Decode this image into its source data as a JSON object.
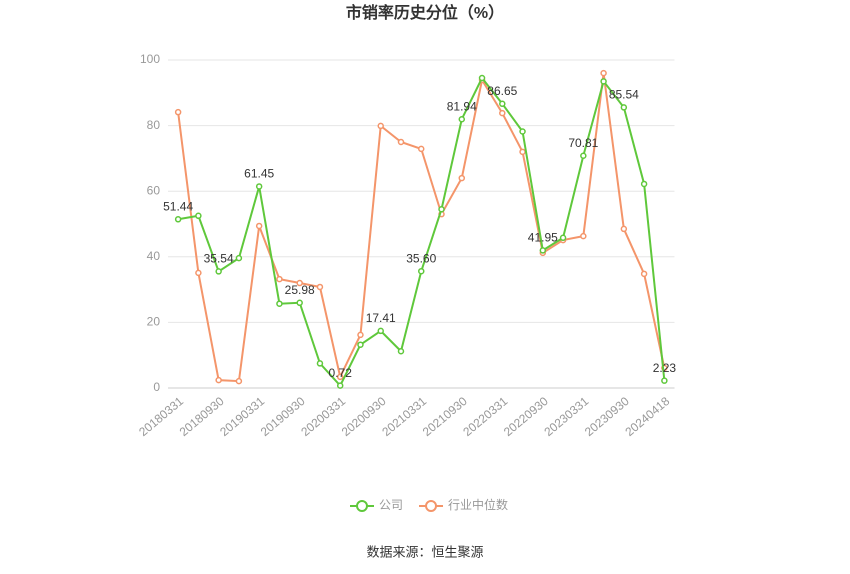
{
  "chart_data": {
    "type": "line",
    "title": "市销率历史分位（%）",
    "source": "数据来源：恒生聚源",
    "categories": [
      "20180331",
      null,
      "20180930",
      null,
      "20190331",
      null,
      "20190930",
      null,
      "20200331",
      null,
      "20200930",
      null,
      "20210331",
      null,
      "20210930",
      null,
      "20220331",
      null,
      "20220930",
      null,
      "20230331",
      null,
      "20230930",
      null,
      "20240418"
    ],
    "ylim": [
      0,
      100
    ],
    "yticks": [
      0,
      20,
      40,
      60,
      80,
      100
    ],
    "grid": true,
    "legend": "bottom",
    "series": [
      {
        "name": "公司",
        "color": "#5fc83b",
        "values": [
          51.44,
          52.5,
          35.54,
          39.6,
          61.45,
          25.7,
          25.98,
          7.5,
          0.72,
          13.2,
          17.41,
          11.2,
          35.6,
          54.5,
          81.94,
          94.5,
          86.65,
          78.2,
          41.95,
          45.8,
          70.81,
          93.5,
          85.54,
          62.2,
          2.23
        ],
        "value_labels": [
          "51.44",
          null,
          "35.54",
          null,
          "61.45",
          null,
          "25.98",
          null,
          "0.72",
          null,
          "17.41",
          null,
          "35.60",
          null,
          "81.94",
          null,
          "86.65",
          null,
          "41.95",
          null,
          "70.81",
          null,
          "85.54",
          null,
          "2.23"
        ]
      },
      {
        "name": "行业中位数",
        "color": "#f4956a",
        "values": [
          84.1,
          35.1,
          2.4,
          2.1,
          49.4,
          33.2,
          32.0,
          30.8,
          3.4,
          16.2,
          79.9,
          75.0,
          72.9,
          53.0,
          64.0,
          93.9,
          83.8,
          72.0,
          41.2,
          45.1,
          46.3,
          96.0,
          48.5,
          34.8,
          6.1
        ]
      }
    ]
  }
}
